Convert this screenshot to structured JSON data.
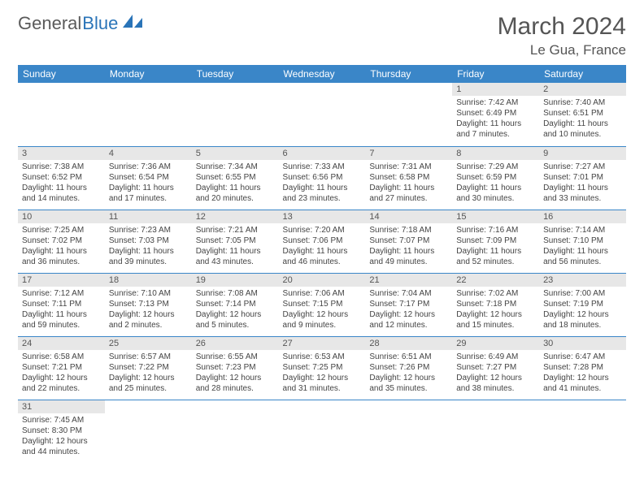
{
  "logo": {
    "text1": "General",
    "text2": "Blue",
    "icon_color": "#2a74b8"
  },
  "header": {
    "month_title": "March 2024",
    "location": "Le Gua, France"
  },
  "colors": {
    "header_bg": "#3a86c8",
    "header_text": "#ffffff",
    "daynum_bg": "#e7e7e7",
    "border": "#3a86c8",
    "body_text": "#444444"
  },
  "weekdays": [
    "Sunday",
    "Monday",
    "Tuesday",
    "Wednesday",
    "Thursday",
    "Friday",
    "Saturday"
  ],
  "weeks": [
    [
      {
        "num": "",
        "lines": []
      },
      {
        "num": "",
        "lines": []
      },
      {
        "num": "",
        "lines": []
      },
      {
        "num": "",
        "lines": []
      },
      {
        "num": "",
        "lines": []
      },
      {
        "num": "1",
        "lines": [
          "Sunrise: 7:42 AM",
          "Sunset: 6:49 PM",
          "Daylight: 11 hours",
          "and 7 minutes."
        ]
      },
      {
        "num": "2",
        "lines": [
          "Sunrise: 7:40 AM",
          "Sunset: 6:51 PM",
          "Daylight: 11 hours",
          "and 10 minutes."
        ]
      }
    ],
    [
      {
        "num": "3",
        "lines": [
          "Sunrise: 7:38 AM",
          "Sunset: 6:52 PM",
          "Daylight: 11 hours",
          "and 14 minutes."
        ]
      },
      {
        "num": "4",
        "lines": [
          "Sunrise: 7:36 AM",
          "Sunset: 6:54 PM",
          "Daylight: 11 hours",
          "and 17 minutes."
        ]
      },
      {
        "num": "5",
        "lines": [
          "Sunrise: 7:34 AM",
          "Sunset: 6:55 PM",
          "Daylight: 11 hours",
          "and 20 minutes."
        ]
      },
      {
        "num": "6",
        "lines": [
          "Sunrise: 7:33 AM",
          "Sunset: 6:56 PM",
          "Daylight: 11 hours",
          "and 23 minutes."
        ]
      },
      {
        "num": "7",
        "lines": [
          "Sunrise: 7:31 AM",
          "Sunset: 6:58 PM",
          "Daylight: 11 hours",
          "and 27 minutes."
        ]
      },
      {
        "num": "8",
        "lines": [
          "Sunrise: 7:29 AM",
          "Sunset: 6:59 PM",
          "Daylight: 11 hours",
          "and 30 minutes."
        ]
      },
      {
        "num": "9",
        "lines": [
          "Sunrise: 7:27 AM",
          "Sunset: 7:01 PM",
          "Daylight: 11 hours",
          "and 33 minutes."
        ]
      }
    ],
    [
      {
        "num": "10",
        "lines": [
          "Sunrise: 7:25 AM",
          "Sunset: 7:02 PM",
          "Daylight: 11 hours",
          "and 36 minutes."
        ]
      },
      {
        "num": "11",
        "lines": [
          "Sunrise: 7:23 AM",
          "Sunset: 7:03 PM",
          "Daylight: 11 hours",
          "and 39 minutes."
        ]
      },
      {
        "num": "12",
        "lines": [
          "Sunrise: 7:21 AM",
          "Sunset: 7:05 PM",
          "Daylight: 11 hours",
          "and 43 minutes."
        ]
      },
      {
        "num": "13",
        "lines": [
          "Sunrise: 7:20 AM",
          "Sunset: 7:06 PM",
          "Daylight: 11 hours",
          "and 46 minutes."
        ]
      },
      {
        "num": "14",
        "lines": [
          "Sunrise: 7:18 AM",
          "Sunset: 7:07 PM",
          "Daylight: 11 hours",
          "and 49 minutes."
        ]
      },
      {
        "num": "15",
        "lines": [
          "Sunrise: 7:16 AM",
          "Sunset: 7:09 PM",
          "Daylight: 11 hours",
          "and 52 minutes."
        ]
      },
      {
        "num": "16",
        "lines": [
          "Sunrise: 7:14 AM",
          "Sunset: 7:10 PM",
          "Daylight: 11 hours",
          "and 56 minutes."
        ]
      }
    ],
    [
      {
        "num": "17",
        "lines": [
          "Sunrise: 7:12 AM",
          "Sunset: 7:11 PM",
          "Daylight: 11 hours",
          "and 59 minutes."
        ]
      },
      {
        "num": "18",
        "lines": [
          "Sunrise: 7:10 AM",
          "Sunset: 7:13 PM",
          "Daylight: 12 hours",
          "and 2 minutes."
        ]
      },
      {
        "num": "19",
        "lines": [
          "Sunrise: 7:08 AM",
          "Sunset: 7:14 PM",
          "Daylight: 12 hours",
          "and 5 minutes."
        ]
      },
      {
        "num": "20",
        "lines": [
          "Sunrise: 7:06 AM",
          "Sunset: 7:15 PM",
          "Daylight: 12 hours",
          "and 9 minutes."
        ]
      },
      {
        "num": "21",
        "lines": [
          "Sunrise: 7:04 AM",
          "Sunset: 7:17 PM",
          "Daylight: 12 hours",
          "and 12 minutes."
        ]
      },
      {
        "num": "22",
        "lines": [
          "Sunrise: 7:02 AM",
          "Sunset: 7:18 PM",
          "Daylight: 12 hours",
          "and 15 minutes."
        ]
      },
      {
        "num": "23",
        "lines": [
          "Sunrise: 7:00 AM",
          "Sunset: 7:19 PM",
          "Daylight: 12 hours",
          "and 18 minutes."
        ]
      }
    ],
    [
      {
        "num": "24",
        "lines": [
          "Sunrise: 6:58 AM",
          "Sunset: 7:21 PM",
          "Daylight: 12 hours",
          "and 22 minutes."
        ]
      },
      {
        "num": "25",
        "lines": [
          "Sunrise: 6:57 AM",
          "Sunset: 7:22 PM",
          "Daylight: 12 hours",
          "and 25 minutes."
        ]
      },
      {
        "num": "26",
        "lines": [
          "Sunrise: 6:55 AM",
          "Sunset: 7:23 PM",
          "Daylight: 12 hours",
          "and 28 minutes."
        ]
      },
      {
        "num": "27",
        "lines": [
          "Sunrise: 6:53 AM",
          "Sunset: 7:25 PM",
          "Daylight: 12 hours",
          "and 31 minutes."
        ]
      },
      {
        "num": "28",
        "lines": [
          "Sunrise: 6:51 AM",
          "Sunset: 7:26 PM",
          "Daylight: 12 hours",
          "and 35 minutes."
        ]
      },
      {
        "num": "29",
        "lines": [
          "Sunrise: 6:49 AM",
          "Sunset: 7:27 PM",
          "Daylight: 12 hours",
          "and 38 minutes."
        ]
      },
      {
        "num": "30",
        "lines": [
          "Sunrise: 6:47 AM",
          "Sunset: 7:28 PM",
          "Daylight: 12 hours",
          "and 41 minutes."
        ]
      }
    ],
    [
      {
        "num": "31",
        "lines": [
          "Sunrise: 7:45 AM",
          "Sunset: 8:30 PM",
          "Daylight: 12 hours",
          "and 44 minutes."
        ]
      },
      {
        "num": "",
        "lines": []
      },
      {
        "num": "",
        "lines": []
      },
      {
        "num": "",
        "lines": []
      },
      {
        "num": "",
        "lines": []
      },
      {
        "num": "",
        "lines": []
      },
      {
        "num": "",
        "lines": []
      }
    ]
  ]
}
